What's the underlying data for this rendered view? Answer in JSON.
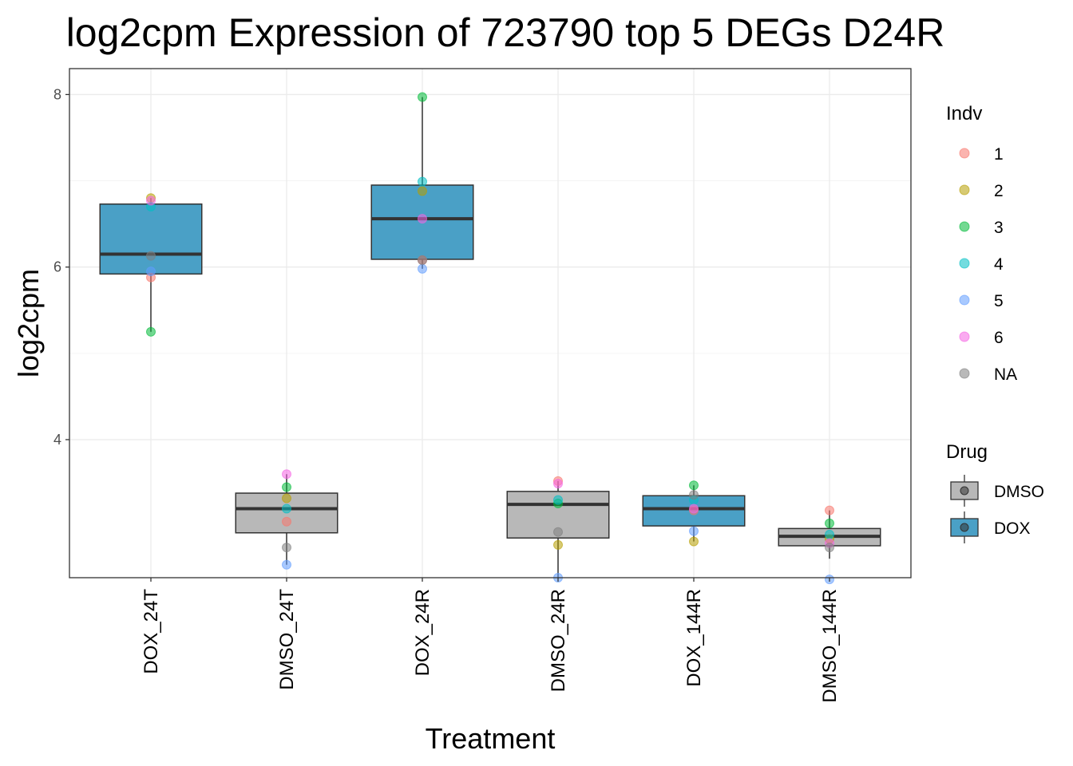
{
  "chart_data": {
    "type": "box",
    "title": "log2cpm Expression of 723790 top 5 DEGs D24R",
    "xlabel": "Treatment",
    "ylabel": "log2cpm",
    "ylim": [
      2.4,
      8.3
    ],
    "yticks": [
      4,
      6,
      8
    ],
    "grid": true,
    "categories": [
      "DOX_24T",
      "DMSO_24T",
      "DOX_24R",
      "DMSO_24R",
      "DOX_144R",
      "DMSO_144R"
    ],
    "boxes": [
      {
        "category": "DOX_24T",
        "drug": "DOX",
        "min": 5.25,
        "q1": 5.92,
        "median": 6.15,
        "q3": 6.73,
        "max": 6.8
      },
      {
        "category": "DMSO_24T",
        "drug": "DMSO",
        "min": 2.55,
        "q1": 2.92,
        "median": 3.2,
        "q3": 3.38,
        "max": 3.6
      },
      {
        "category": "DOX_24R",
        "drug": "DOX",
        "min": 5.98,
        "q1": 6.09,
        "median": 6.56,
        "q3": 6.95,
        "max": 7.97
      },
      {
        "category": "DMSO_24R",
        "drug": "DMSO",
        "min": 2.4,
        "q1": 2.86,
        "median": 3.25,
        "q3": 3.4,
        "max": 3.52
      },
      {
        "category": "DOX_144R",
        "drug": "DOX",
        "min": 2.82,
        "q1": 3.0,
        "median": 3.2,
        "q3": 3.35,
        "max": 3.47
      },
      {
        "category": "DMSO_144R",
        "drug": "DMSO",
        "min": 2.62,
        "q1": 2.77,
        "median": 2.88,
        "q3": 2.97,
        "max": 3.18
      }
    ],
    "points": [
      {
        "category": "DOX_24T",
        "indv": "1",
        "y": 5.88
      },
      {
        "category": "DOX_24T",
        "indv": "2",
        "y": 6.8
      },
      {
        "category": "DOX_24T",
        "indv": "3",
        "y": 5.25
      },
      {
        "category": "DOX_24T",
        "indv": "4",
        "y": 6.7
      },
      {
        "category": "DOX_24T",
        "indv": "5",
        "y": 5.95
      },
      {
        "category": "DOX_24T",
        "indv": "6",
        "y": 6.77
      },
      {
        "category": "DOX_24T",
        "indv": "NA",
        "y": 6.13
      },
      {
        "category": "DMSO_24T",
        "indv": "1",
        "y": 3.05
      },
      {
        "category": "DMSO_24T",
        "indv": "2",
        "y": 3.32
      },
      {
        "category": "DMSO_24T",
        "indv": "3",
        "y": 3.45
      },
      {
        "category": "DMSO_24T",
        "indv": "4",
        "y": 3.2
      },
      {
        "category": "DMSO_24T",
        "indv": "5",
        "y": 2.55
      },
      {
        "category": "DMSO_24T",
        "indv": "6",
        "y": 3.6
      },
      {
        "category": "DMSO_24T",
        "indv": "NA",
        "y": 2.75
      },
      {
        "category": "DOX_24R",
        "indv": "1",
        "y": 6.08
      },
      {
        "category": "DOX_24R",
        "indv": "2",
        "y": 6.88
      },
      {
        "category": "DOX_24R",
        "indv": "3",
        "y": 7.97
      },
      {
        "category": "DOX_24R",
        "indv": "4",
        "y": 6.99
      },
      {
        "category": "DOX_24R",
        "indv": "5",
        "y": 5.98
      },
      {
        "category": "DOX_24R",
        "indv": "6",
        "y": 6.56
      },
      {
        "category": "DOX_24R",
        "indv": "NA",
        "y": 6.08
      },
      {
        "category": "DMSO_24R",
        "indv": "1",
        "y": 3.52
      },
      {
        "category": "DMSO_24R",
        "indv": "2",
        "y": 2.78
      },
      {
        "category": "DMSO_24R",
        "indv": "3",
        "y": 3.26
      },
      {
        "category": "DMSO_24R",
        "indv": "4",
        "y": 3.3
      },
      {
        "category": "DMSO_24R",
        "indv": "5",
        "y": 2.4
      },
      {
        "category": "DMSO_24R",
        "indv": "6",
        "y": 3.49
      },
      {
        "category": "DMSO_24R",
        "indv": "NA",
        "y": 2.93
      },
      {
        "category": "DOX_144R",
        "indv": "1",
        "y": 3.18
      },
      {
        "category": "DOX_144R",
        "indv": "2",
        "y": 2.82
      },
      {
        "category": "DOX_144R",
        "indv": "3",
        "y": 3.47
      },
      {
        "category": "DOX_144R",
        "indv": "4",
        "y": 3.3
      },
      {
        "category": "DOX_144R",
        "indv": "5",
        "y": 2.94
      },
      {
        "category": "DOX_144R",
        "indv": "6",
        "y": 3.2
      },
      {
        "category": "DOX_144R",
        "indv": "NA",
        "y": 3.36
      },
      {
        "category": "DMSO_144R",
        "indv": "1",
        "y": 3.18
      },
      {
        "category": "DMSO_144R",
        "indv": "2",
        "y": 2.85
      },
      {
        "category": "DMSO_144R",
        "indv": "3",
        "y": 3.03
      },
      {
        "category": "DMSO_144R",
        "indv": "4",
        "y": 2.9
      },
      {
        "category": "DMSO_144R",
        "indv": "5",
        "y": 2.38
      },
      {
        "category": "DMSO_144R",
        "indv": "6",
        "y": 2.8
      },
      {
        "category": "DMSO_144R",
        "indv": "NA",
        "y": 2.75
      }
    ],
    "legend_indv": {
      "title": "Indv",
      "placement": "right",
      "entries": [
        {
          "label": "1",
          "color": "#F8766D"
        },
        {
          "label": "2",
          "color": "#B79F00"
        },
        {
          "label": "3",
          "color": "#00BA38"
        },
        {
          "label": "4",
          "color": "#00BFC4"
        },
        {
          "label": "5",
          "color": "#619CFF"
        },
        {
          "label": "6",
          "color": "#F564E3"
        },
        {
          "label": "NA",
          "color": "#7F7F7F"
        }
      ]
    },
    "legend_drug": {
      "title": "Drug",
      "placement": "right",
      "entries": [
        {
          "label": "DMSO",
          "color": "#B8B8B8"
        },
        {
          "label": "DOX",
          "color": "#4AA0C6"
        }
      ]
    }
  }
}
